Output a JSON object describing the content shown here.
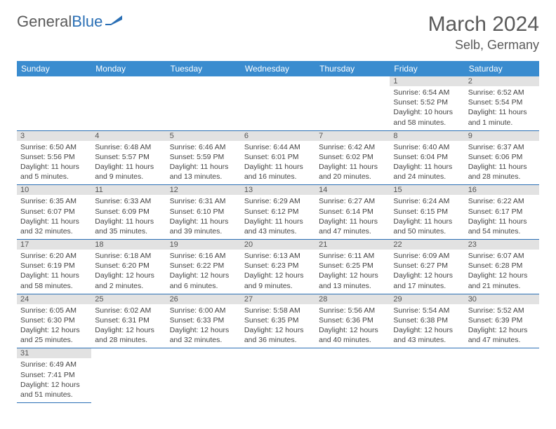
{
  "brand": {
    "part1": "General",
    "part2": "Blue"
  },
  "title": {
    "month": "March 2024",
    "location": "Selb, Germany"
  },
  "colors": {
    "header_bg": "#3a8ccf",
    "header_fg": "#ffffff",
    "daynum_bg": "#e2e2e2",
    "cell_border": "#2a6fb5",
    "text": "#444444",
    "title_color": "#5a5a5a"
  },
  "weekdays": [
    "Sunday",
    "Monday",
    "Tuesday",
    "Wednesday",
    "Thursday",
    "Friday",
    "Saturday"
  ],
  "weeks": [
    [
      null,
      null,
      null,
      null,
      null,
      {
        "day": "1",
        "sunrise": "Sunrise: 6:54 AM",
        "sunset": "Sunset: 5:52 PM",
        "daylight": "Daylight: 10 hours and 58 minutes."
      },
      {
        "day": "2",
        "sunrise": "Sunrise: 6:52 AM",
        "sunset": "Sunset: 5:54 PM",
        "daylight": "Daylight: 11 hours and 1 minute."
      }
    ],
    [
      {
        "day": "3",
        "sunrise": "Sunrise: 6:50 AM",
        "sunset": "Sunset: 5:56 PM",
        "daylight": "Daylight: 11 hours and 5 minutes."
      },
      {
        "day": "4",
        "sunrise": "Sunrise: 6:48 AM",
        "sunset": "Sunset: 5:57 PM",
        "daylight": "Daylight: 11 hours and 9 minutes."
      },
      {
        "day": "5",
        "sunrise": "Sunrise: 6:46 AM",
        "sunset": "Sunset: 5:59 PM",
        "daylight": "Daylight: 11 hours and 13 minutes."
      },
      {
        "day": "6",
        "sunrise": "Sunrise: 6:44 AM",
        "sunset": "Sunset: 6:01 PM",
        "daylight": "Daylight: 11 hours and 16 minutes."
      },
      {
        "day": "7",
        "sunrise": "Sunrise: 6:42 AM",
        "sunset": "Sunset: 6:02 PM",
        "daylight": "Daylight: 11 hours and 20 minutes."
      },
      {
        "day": "8",
        "sunrise": "Sunrise: 6:40 AM",
        "sunset": "Sunset: 6:04 PM",
        "daylight": "Daylight: 11 hours and 24 minutes."
      },
      {
        "day": "9",
        "sunrise": "Sunrise: 6:37 AM",
        "sunset": "Sunset: 6:06 PM",
        "daylight": "Daylight: 11 hours and 28 minutes."
      }
    ],
    [
      {
        "day": "10",
        "sunrise": "Sunrise: 6:35 AM",
        "sunset": "Sunset: 6:07 PM",
        "daylight": "Daylight: 11 hours and 32 minutes."
      },
      {
        "day": "11",
        "sunrise": "Sunrise: 6:33 AM",
        "sunset": "Sunset: 6:09 PM",
        "daylight": "Daylight: 11 hours and 35 minutes."
      },
      {
        "day": "12",
        "sunrise": "Sunrise: 6:31 AM",
        "sunset": "Sunset: 6:10 PM",
        "daylight": "Daylight: 11 hours and 39 minutes."
      },
      {
        "day": "13",
        "sunrise": "Sunrise: 6:29 AM",
        "sunset": "Sunset: 6:12 PM",
        "daylight": "Daylight: 11 hours and 43 minutes."
      },
      {
        "day": "14",
        "sunrise": "Sunrise: 6:27 AM",
        "sunset": "Sunset: 6:14 PM",
        "daylight": "Daylight: 11 hours and 47 minutes."
      },
      {
        "day": "15",
        "sunrise": "Sunrise: 6:24 AM",
        "sunset": "Sunset: 6:15 PM",
        "daylight": "Daylight: 11 hours and 50 minutes."
      },
      {
        "day": "16",
        "sunrise": "Sunrise: 6:22 AM",
        "sunset": "Sunset: 6:17 PM",
        "daylight": "Daylight: 11 hours and 54 minutes."
      }
    ],
    [
      {
        "day": "17",
        "sunrise": "Sunrise: 6:20 AM",
        "sunset": "Sunset: 6:19 PM",
        "daylight": "Daylight: 11 hours and 58 minutes."
      },
      {
        "day": "18",
        "sunrise": "Sunrise: 6:18 AM",
        "sunset": "Sunset: 6:20 PM",
        "daylight": "Daylight: 12 hours and 2 minutes."
      },
      {
        "day": "19",
        "sunrise": "Sunrise: 6:16 AM",
        "sunset": "Sunset: 6:22 PM",
        "daylight": "Daylight: 12 hours and 6 minutes."
      },
      {
        "day": "20",
        "sunrise": "Sunrise: 6:13 AM",
        "sunset": "Sunset: 6:23 PM",
        "daylight": "Daylight: 12 hours and 9 minutes."
      },
      {
        "day": "21",
        "sunrise": "Sunrise: 6:11 AM",
        "sunset": "Sunset: 6:25 PM",
        "daylight": "Daylight: 12 hours and 13 minutes."
      },
      {
        "day": "22",
        "sunrise": "Sunrise: 6:09 AM",
        "sunset": "Sunset: 6:27 PM",
        "daylight": "Daylight: 12 hours and 17 minutes."
      },
      {
        "day": "23",
        "sunrise": "Sunrise: 6:07 AM",
        "sunset": "Sunset: 6:28 PM",
        "daylight": "Daylight: 12 hours and 21 minutes."
      }
    ],
    [
      {
        "day": "24",
        "sunrise": "Sunrise: 6:05 AM",
        "sunset": "Sunset: 6:30 PM",
        "daylight": "Daylight: 12 hours and 25 minutes."
      },
      {
        "day": "25",
        "sunrise": "Sunrise: 6:02 AM",
        "sunset": "Sunset: 6:31 PM",
        "daylight": "Daylight: 12 hours and 28 minutes."
      },
      {
        "day": "26",
        "sunrise": "Sunrise: 6:00 AM",
        "sunset": "Sunset: 6:33 PM",
        "daylight": "Daylight: 12 hours and 32 minutes."
      },
      {
        "day": "27",
        "sunrise": "Sunrise: 5:58 AM",
        "sunset": "Sunset: 6:35 PM",
        "daylight": "Daylight: 12 hours and 36 minutes."
      },
      {
        "day": "28",
        "sunrise": "Sunrise: 5:56 AM",
        "sunset": "Sunset: 6:36 PM",
        "daylight": "Daylight: 12 hours and 40 minutes."
      },
      {
        "day": "29",
        "sunrise": "Sunrise: 5:54 AM",
        "sunset": "Sunset: 6:38 PM",
        "daylight": "Daylight: 12 hours and 43 minutes."
      },
      {
        "day": "30",
        "sunrise": "Sunrise: 5:52 AM",
        "sunset": "Sunset: 6:39 PM",
        "daylight": "Daylight: 12 hours and 47 minutes."
      }
    ],
    [
      {
        "day": "31",
        "sunrise": "Sunrise: 6:49 AM",
        "sunset": "Sunset: 7:41 PM",
        "daylight": "Daylight: 12 hours and 51 minutes."
      },
      null,
      null,
      null,
      null,
      null,
      null
    ]
  ]
}
